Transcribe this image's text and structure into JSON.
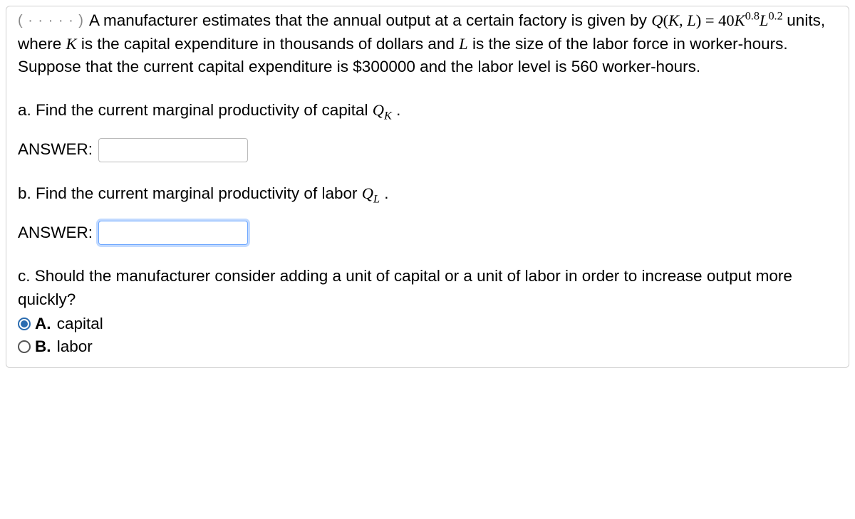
{
  "points_badge": "( · · · · · )",
  "problem": {
    "intro_pre": "A manufacturer estimates that the annual output at a certain factory is given by ",
    "eq_lhs_Q": "Q",
    "eq_lhs_open": "(",
    "eq_lhs_K": "K",
    "eq_lhs_comma": ", ",
    "eq_lhs_L": "L",
    "eq_lhs_close": ")",
    "eq_eq": " = ",
    "eq_coeff": "40",
    "eq_Kexp": "0.8",
    "eq_Lexp": "0.2",
    "intro_post1": " units, where ",
    "var_K": "K",
    "intro_post2": " is the capital expenditure in thousands of dollars and ",
    "var_L": "L",
    "intro_post3": " is the size of the labor force in worker-hours. Suppose that the current capital expenditure is $300000 and the labor level is 560 worker-hours."
  },
  "parts": {
    "a": {
      "text_pre": "a. Find the current marginal productivity of capital ",
      "sym_Q": "Q",
      "sym_sub": "K",
      "text_post": " .",
      "answer_label": "ANSWER:",
      "value": ""
    },
    "b": {
      "text_pre": "b. Find the current marginal productivity of labor ",
      "sym_Q": "Q",
      "sym_sub": "L",
      "text_post": ".",
      "answer_label": "ANSWER:",
      "value": ""
    },
    "c": {
      "text": "c. Should the manufacturer consider adding a unit of capital or a unit of labor in order to increase output more quickly?",
      "optA_letter": "A.",
      "optA_label": "capital",
      "optB_letter": "B.",
      "optB_label": "labor",
      "selected": "A"
    }
  }
}
